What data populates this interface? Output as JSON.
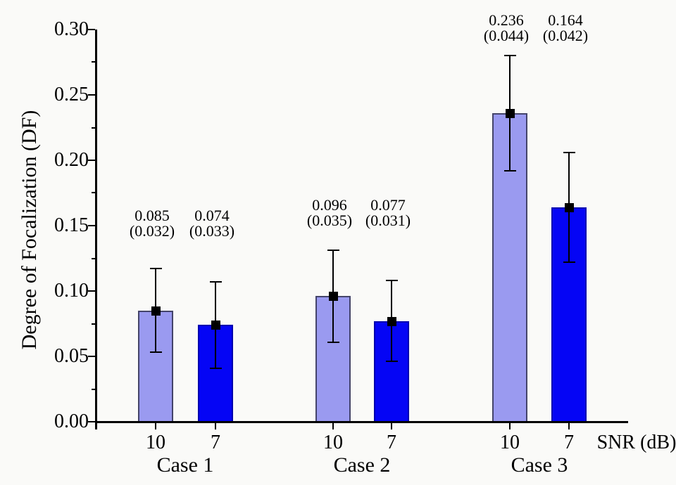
{
  "page": {
    "background": "#fafaf8",
    "text_color": "#000000",
    "axis_color": "#000000"
  },
  "chart_data": {
    "type": "bar",
    "title": "",
    "xlabel": "SNR (dB)",
    "ylabel": "Degree of Focalization (DF)",
    "ylim": [
      0,
      0.3
    ],
    "y_major_tick_step": 0.05,
    "y_minor_tick_step": 0.025,
    "y_tick_labels": [
      "0.00",
      "0.05",
      "0.10",
      "0.15",
      "0.20",
      "0.25",
      "0.30"
    ],
    "grid": false,
    "legend": "none",
    "annotation_format": "mean above (standard deviation)",
    "categories": [
      "Case 1",
      "Case 2",
      "Case 3"
    ],
    "snr_levels": [
      "10",
      "7"
    ],
    "groups": [
      {
        "label": "Case 1",
        "bars": [
          {
            "snr": "10",
            "series": "snr10",
            "value": 0.085,
            "sd": 0.032,
            "value_label": "0.085",
            "sd_label": "(0.032)"
          },
          {
            "snr": "7",
            "series": "snr7",
            "value": 0.074,
            "sd": 0.033,
            "value_label": "0.074",
            "sd_label": "(0.033)"
          }
        ]
      },
      {
        "label": "Case 2",
        "bars": [
          {
            "snr": "10",
            "series": "snr10",
            "value": 0.096,
            "sd": 0.035,
            "value_label": "0.096",
            "sd_label": "(0.035)"
          },
          {
            "snr": "7",
            "series": "snr7",
            "value": 0.077,
            "sd": 0.031,
            "value_label": "0.077",
            "sd_label": "(0.031)"
          }
        ]
      },
      {
        "label": "Case 3",
        "bars": [
          {
            "snr": "10",
            "series": "snr10",
            "value": 0.236,
            "sd": 0.044,
            "value_label": "0.236",
            "sd_label": "(0.044)"
          },
          {
            "snr": "7",
            "series": "snr7",
            "value": 0.164,
            "sd": 0.042,
            "value_label": "0.164",
            "sd_label": "(0.042)"
          }
        ]
      }
    ],
    "series_styles": {
      "snr10": {
        "fill": "#9a9af0",
        "border": "#44446a"
      },
      "snr7": {
        "fill": "#0505f5",
        "border": "#0000b0"
      }
    },
    "error_bar_color": "#000000",
    "marker": {
      "shape": "square",
      "color": "#000000"
    }
  }
}
